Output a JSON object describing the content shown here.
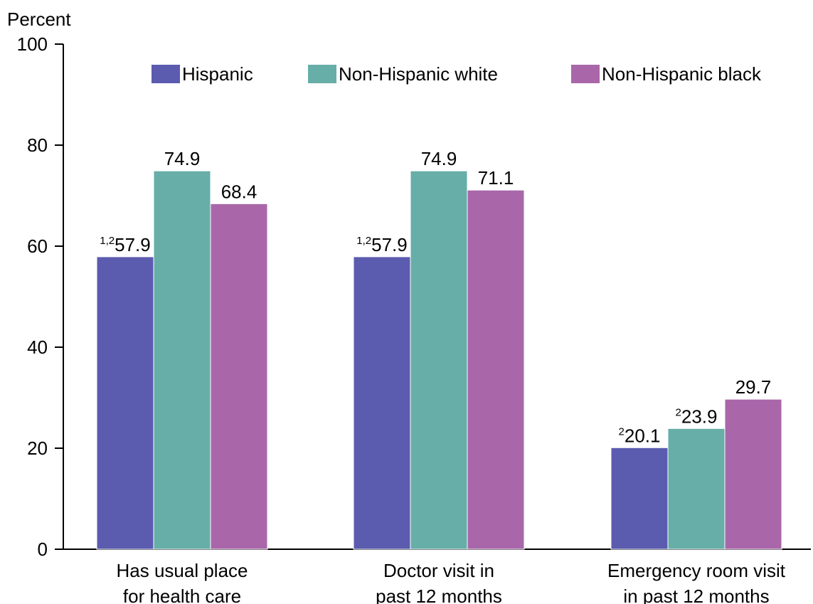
{
  "chart_data": {
    "type": "bar",
    "ylabel": "Percent",
    "ylim": [
      0,
      100
    ],
    "yticks": [
      0,
      20,
      40,
      60,
      80,
      100
    ],
    "grid": false,
    "legend_position": "top",
    "categories": [
      [
        "Has usual place",
        "for health care"
      ],
      [
        "Doctor visit in",
        "past 12 months"
      ],
      [
        "Emergency room visit",
        "in past 12 months"
      ]
    ],
    "series": [
      {
        "name": "Hispanic",
        "color": "#5b5baf",
        "values": [
          57.9,
          57.9,
          20.1
        ],
        "value_labels": [
          "57.9",
          "57.9",
          "20.1"
        ],
        "footnotes": [
          "1,2",
          "1,2",
          "2"
        ]
      },
      {
        "name": "Non-Hispanic white",
        "color": "#67aea8",
        "values": [
          74.9,
          74.9,
          23.9
        ],
        "value_labels": [
          "74.9",
          "74.9",
          "23.9"
        ],
        "footnotes": [
          "",
          "",
          "2"
        ]
      },
      {
        "name": "Non-Hispanic black",
        "color": "#a967a9",
        "values": [
          68.4,
          71.1,
          29.7
        ],
        "value_labels": [
          "68.4",
          "71.1",
          "29.7"
        ],
        "footnotes": [
          "",
          "",
          ""
        ]
      }
    ]
  }
}
